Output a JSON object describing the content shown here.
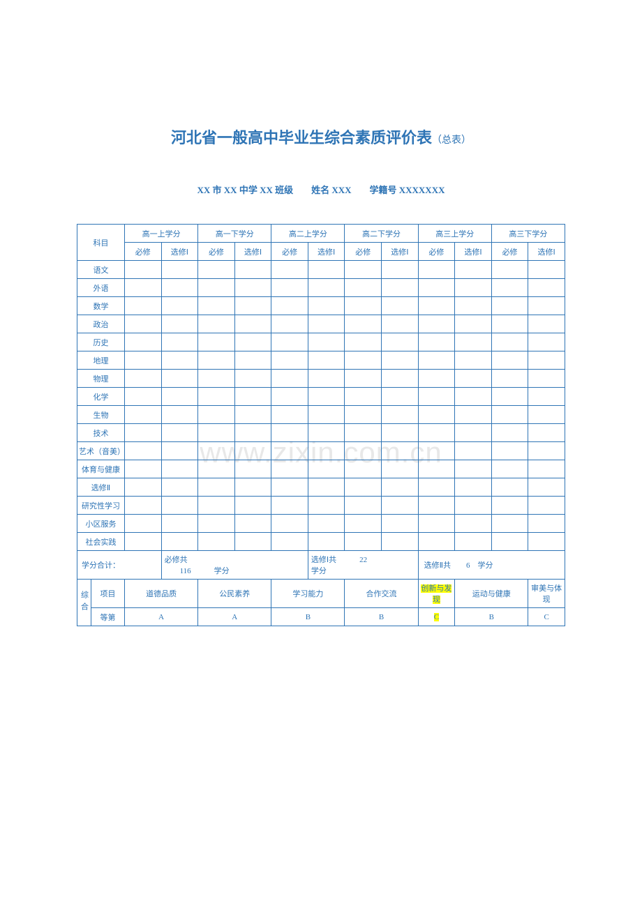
{
  "title": "河北省一般高中毕业生综合素质评价表",
  "title_suffix": "（总表）",
  "info_line": "XX 市 XX 中学 XX 班级　　姓名 XXX　　学籍号 XXXXXXX",
  "watermark": "www.zixin.com.cn",
  "subject_header": "科目",
  "semesters": [
    "高一上学分",
    "高一下学分",
    "高二上学分",
    "高二下学分",
    "高三上学分",
    "高三下学分"
  ],
  "col_labels": {
    "required": "必修",
    "elective1": "选修Ⅰ"
  },
  "subjects": [
    "语文",
    "外语",
    "数学",
    "政治",
    "历史",
    "地理",
    "物理",
    "化学",
    "生物",
    "技术",
    "艺术（音美）",
    "体育与健康",
    "选修Ⅱ",
    "研究性学习",
    "小区服务",
    "社会实践"
  ],
  "credit_summary": {
    "label": "学分合计：",
    "required_prefix": "必修共",
    "required_value": "116",
    "required_suffix": "学分",
    "elective1_prefix": "选修Ⅰ共",
    "elective1_value": "22",
    "elective1_suffix": "学分",
    "elective2_prefix": "选修Ⅱ共",
    "elective2_value": "6",
    "elective2_suffix": "学分"
  },
  "evaluation": {
    "group_label": "综合",
    "row_labels": [
      "项目",
      "等第"
    ],
    "items": [
      "道德品质",
      "公民素养",
      "学习能力",
      "合作交流",
      "创新与发现",
      "运动与健康",
      "审美与体现"
    ],
    "grades": [
      "A",
      "A",
      "B",
      "B",
      "C",
      "B",
      "C"
    ],
    "highlights": {
      "item_idx": 4,
      "grade_idx": 4
    }
  },
  "colors": {
    "primary": "#2e74b5",
    "highlight": "#ffff00",
    "watermark": "#e8e8e8",
    "bg": "#ffffff"
  }
}
